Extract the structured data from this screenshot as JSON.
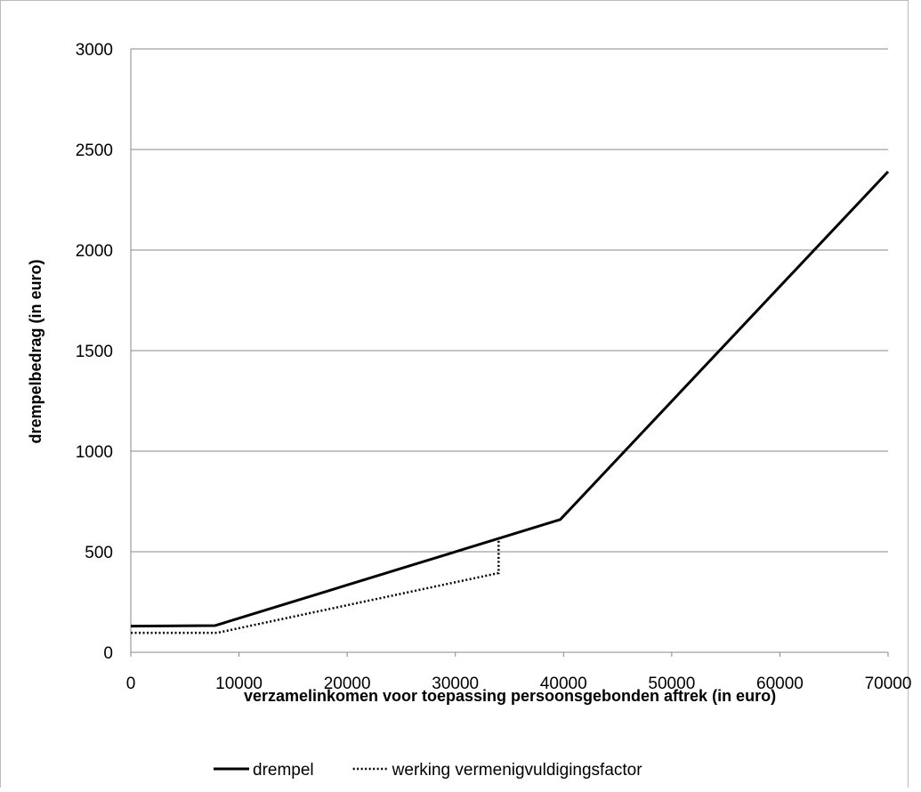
{
  "chart_data": {
    "type": "line",
    "xlabel": "verzamelinkomen voor toepassing persoonsgebonden aftrek (in euro)",
    "ylabel": "drempelbedrag (in euro)",
    "xlim": [
      0,
      70000
    ],
    "xticks": [
      0,
      10000,
      20000,
      30000,
      40000,
      50000,
      60000,
      70000
    ],
    "ylim": [
      0,
      3000
    ],
    "yticks": [
      0,
      500,
      1000,
      1500,
      2000,
      2500,
      3000
    ],
    "grid": true,
    "legend": "bottom",
    "series": [
      {
        "name": "drempel",
        "color": "#000000",
        "style": "solid",
        "x": [
          0,
          7800,
          39700,
          70000
        ],
        "values": [
          130,
          133,
          660,
          2390
        ]
      },
      {
        "name": "werking vermenigvuldigingsfactor",
        "color": "#000000",
        "style": "dotted",
        "x": [
          0,
          8000,
          34000,
          34000
        ],
        "values": [
          97,
          97,
          394,
          557
        ]
      }
    ]
  }
}
